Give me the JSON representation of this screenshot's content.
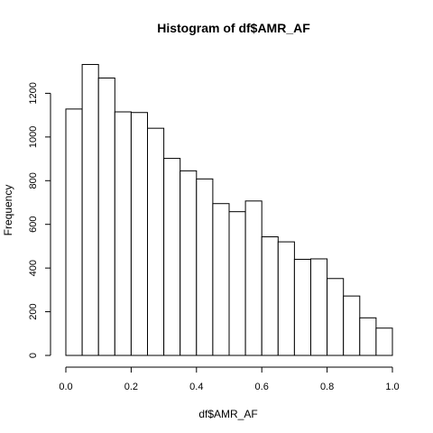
{
  "chart_data": {
    "type": "bar",
    "title": "Histogram of df$AMR_AF",
    "xlabel": "df$AMR_AF",
    "ylabel": "Frequency",
    "bin_width": 0.05,
    "bins": [
      {
        "x0": 0.0,
        "x1": 0.05,
        "count": 1128
      },
      {
        "x0": 0.05,
        "x1": 0.1,
        "count": 1332
      },
      {
        "x0": 0.1,
        "x1": 0.15,
        "count": 1270
      },
      {
        "x0": 0.15,
        "x1": 0.2,
        "count": 1115
      },
      {
        "x0": 0.2,
        "x1": 0.25,
        "count": 1112
      },
      {
        "x0": 0.25,
        "x1": 0.3,
        "count": 1040
      },
      {
        "x0": 0.3,
        "x1": 0.35,
        "count": 902
      },
      {
        "x0": 0.35,
        "x1": 0.4,
        "count": 845
      },
      {
        "x0": 0.4,
        "x1": 0.45,
        "count": 808
      },
      {
        "x0": 0.45,
        "x1": 0.5,
        "count": 695
      },
      {
        "x0": 0.5,
        "x1": 0.55,
        "count": 658
      },
      {
        "x0": 0.55,
        "x1": 0.6,
        "count": 707
      },
      {
        "x0": 0.6,
        "x1": 0.65,
        "count": 543
      },
      {
        "x0": 0.65,
        "x1": 0.7,
        "count": 520
      },
      {
        "x0": 0.7,
        "x1": 0.75,
        "count": 440
      },
      {
        "x0": 0.75,
        "x1": 0.8,
        "count": 442
      },
      {
        "x0": 0.8,
        "x1": 0.85,
        "count": 352
      },
      {
        "x0": 0.85,
        "x1": 0.9,
        "count": 272
      },
      {
        "x0": 0.9,
        "x1": 0.95,
        "count": 172
      },
      {
        "x0": 0.95,
        "x1": 1.0,
        "count": 125
      }
    ],
    "xlim": [
      0.0,
      1.0
    ],
    "ylim": [
      0,
      1400
    ],
    "xticks": [
      0.0,
      0.2,
      0.4,
      0.6,
      0.8,
      1.0
    ],
    "xtick_labels": [
      "0.0",
      "0.2",
      "0.4",
      "0.6",
      "0.8",
      "1.0"
    ],
    "yticks": [
      0,
      200,
      400,
      600,
      800,
      1000,
      1200
    ],
    "ytick_labels": [
      "0",
      "200",
      "400",
      "600",
      "800",
      "1000",
      "1200"
    ],
    "bar_fill": "#ffffff",
    "bar_stroke": "#000000",
    "grid": false,
    "legend": "none"
  }
}
